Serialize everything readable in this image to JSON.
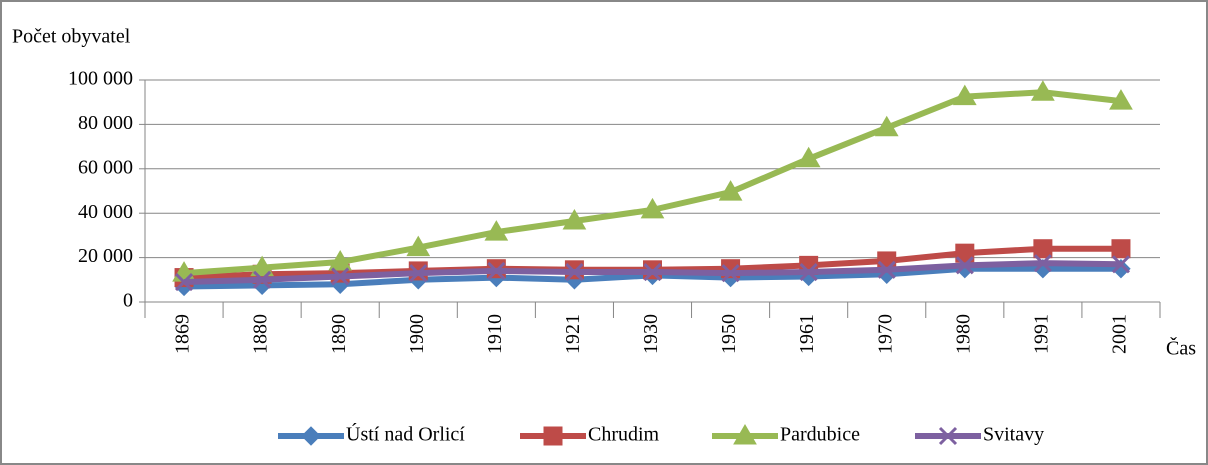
{
  "chart_data": {
    "type": "line",
    "y_label": "Počet obyvatel",
    "x_label": "Čas",
    "categories": [
      "1869",
      "1880",
      "1890",
      "1900",
      "1910",
      "1921",
      "1930",
      "1950",
      "1961",
      "1970",
      "1980",
      "1991",
      "2001"
    ],
    "series": [
      {
        "name": "Ústí nad Orlicí",
        "color": "#4a7ebb",
        "marker": "diamond",
        "values": [
          7000,
          7500,
          8000,
          10000,
          11000,
          10000,
          12000,
          11000,
          11500,
          12500,
          15000,
          15000,
          15000
        ]
      },
      {
        "name": "Chrudim",
        "color": "#be4b48",
        "marker": "square",
        "values": [
          11000,
          12500,
          13000,
          14000,
          15000,
          14500,
          14500,
          15000,
          16500,
          18500,
          22000,
          24000,
          24000
        ]
      },
      {
        "name": "Pardubice",
        "color": "#98b954",
        "marker": "triangle",
        "values": [
          13000,
          15500,
          18000,
          24500,
          31500,
          36500,
          41500,
          49500,
          64500,
          78500,
          92500,
          94500,
          90500
        ]
      },
      {
        "name": "Svitavy",
        "color": "#7d60a0",
        "marker": "x",
        "values": [
          9000,
          10000,
          11500,
          13000,
          14000,
          13500,
          13500,
          13000,
          13500,
          14500,
          16500,
          17500,
          17000
        ]
      }
    ],
    "ylim": [
      0,
      100000
    ],
    "yticks": [
      0,
      {
        "value": 20000,
        "label": "20 000"
      },
      {
        "value": 40000,
        "label": "40 000"
      },
      {
        "value": 60000,
        "label": "60 000"
      },
      {
        "value": 80000,
        "label": "80 000"
      },
      {
        "value": 100000,
        "label": "100 000"
      }
    ],
    "grid": true,
    "legend": "bottom"
  }
}
